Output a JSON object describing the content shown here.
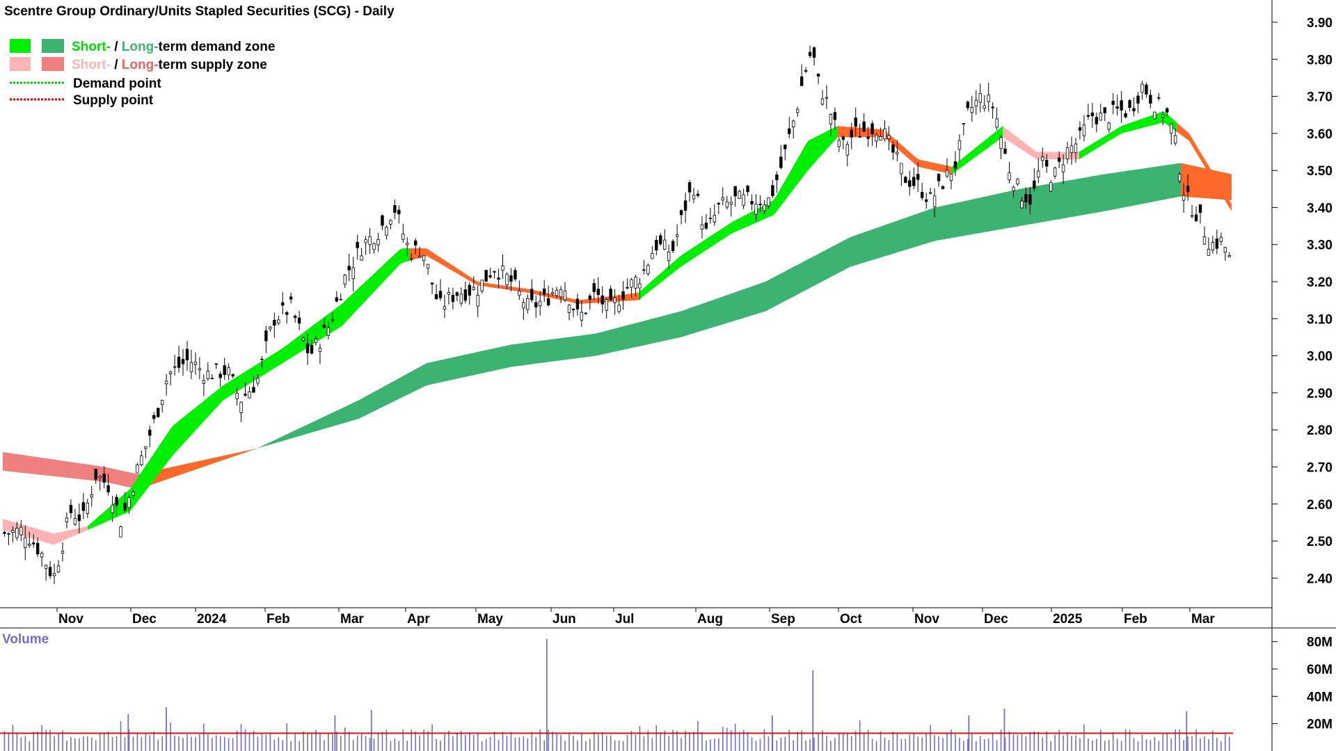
{
  "chart_data": {
    "type": "candlestick",
    "title": "Scentre Group Ordinary/Units Stapled Securities (SCG) - Daily",
    "legend": {
      "items": [
        {
          "text_parts": [
            "Short-",
            " / ",
            "Long-",
            "term demand zone"
          ]
        },
        {
          "text_parts": [
            "Short-",
            " / ",
            "Long-",
            "term supply zone"
          ]
        },
        {
          "text_parts": [
            "Demand point"
          ]
        },
        {
          "text_parts": [
            "Supply point"
          ]
        }
      ],
      "placement": "top-left"
    },
    "price_axis": {
      "ticks": [
        "3.90",
        "3.80",
        "3.70",
        "3.60",
        "3.50",
        "3.40",
        "3.30",
        "3.20",
        "3.10",
        "3.00",
        "2.90",
        "2.80",
        "2.70",
        "2.60",
        "2.50",
        "2.40"
      ],
      "range": [
        2.32,
        3.96
      ]
    },
    "x_axis": {
      "labels": [
        "Nov",
        "Dec",
        "2024",
        "Feb",
        "Mar",
        "Apr",
        "May",
        "Jun",
        "Jul",
        "Aug",
        "Sep",
        "Oct",
        "Nov",
        "Dec",
        "2025",
        "Feb",
        "Mar"
      ]
    },
    "volume": {
      "title": "Volume",
      "ticks": [
        "80M",
        "60M",
        "40M",
        "20M"
      ],
      "max_shown": 82000000
    },
    "close_series": [
      {
        "t": 0,
        "v": 2.52
      },
      {
        "t": 25,
        "v": 2.53
      },
      {
        "t": 45,
        "v": 2.47
      },
      {
        "t": 60,
        "v": 2.4
      },
      {
        "t": 80,
        "v": 2.58
      },
      {
        "t": 95,
        "v": 2.56
      },
      {
        "t": 110,
        "v": 2.68
      },
      {
        "t": 125,
        "v": 2.65
      },
      {
        "t": 140,
        "v": 2.55
      },
      {
        "t": 160,
        "v": 2.7
      },
      {
        "t": 180,
        "v": 2.83
      },
      {
        "t": 195,
        "v": 2.95
      },
      {
        "t": 220,
        "v": 2.99
      },
      {
        "t": 240,
        "v": 2.95
      },
      {
        "t": 265,
        "v": 2.96
      },
      {
        "t": 280,
        "v": 2.88
      },
      {
        "t": 300,
        "v": 2.93
      },
      {
        "t": 320,
        "v": 3.1
      },
      {
        "t": 340,
        "v": 3.13
      },
      {
        "t": 362,
        "v": 3.0
      },
      {
        "t": 385,
        "v": 3.08
      },
      {
        "t": 405,
        "v": 3.22
      },
      {
        "t": 425,
        "v": 3.3
      },
      {
        "t": 445,
        "v": 3.34
      },
      {
        "t": 462,
        "v": 3.4
      },
      {
        "t": 480,
        "v": 3.28
      },
      {
        "t": 495,
        "v": 3.29
      },
      {
        "t": 515,
        "v": 3.13
      },
      {
        "t": 535,
        "v": 3.17
      },
      {
        "t": 560,
        "v": 3.18
      },
      {
        "t": 580,
        "v": 3.24
      },
      {
        "t": 600,
        "v": 3.2
      },
      {
        "t": 620,
        "v": 3.13
      },
      {
        "t": 640,
        "v": 3.15
      },
      {
        "t": 660,
        "v": 3.2
      },
      {
        "t": 680,
        "v": 3.1
      },
      {
        "t": 700,
        "v": 3.17
      },
      {
        "t": 715,
        "v": 3.12
      },
      {
        "t": 735,
        "v": 3.18
      },
      {
        "t": 755,
        "v": 3.22
      },
      {
        "t": 770,
        "v": 3.3
      },
      {
        "t": 790,
        "v": 3.28
      },
      {
        "t": 805,
        "v": 3.4
      },
      {
        "t": 815,
        "v": 3.46
      },
      {
        "t": 830,
        "v": 3.33
      },
      {
        "t": 845,
        "v": 3.4
      },
      {
        "t": 865,
        "v": 3.42
      },
      {
        "t": 885,
        "v": 3.42
      },
      {
        "t": 905,
        "v": 3.42
      },
      {
        "t": 920,
        "v": 3.52
      },
      {
        "t": 935,
        "v": 3.65
      },
      {
        "t": 945,
        "v": 3.75
      },
      {
        "t": 955,
        "v": 3.83
      },
      {
        "t": 962,
        "v": 3.74
      },
      {
        "t": 975,
        "v": 3.67
      },
      {
        "t": 990,
        "v": 3.56
      },
      {
        "t": 1005,
        "v": 3.6
      },
      {
        "t": 1020,
        "v": 3.61
      },
      {
        "t": 1035,
        "v": 3.62
      },
      {
        "t": 1050,
        "v": 3.55
      },
      {
        "t": 1065,
        "v": 3.48
      },
      {
        "t": 1080,
        "v": 3.46
      },
      {
        "t": 1095,
        "v": 3.42
      },
      {
        "t": 1110,
        "v": 3.47
      },
      {
        "t": 1125,
        "v": 3.52
      },
      {
        "t": 1140,
        "v": 3.66
      },
      {
        "t": 1155,
        "v": 3.7
      },
      {
        "t": 1170,
        "v": 3.67
      },
      {
        "t": 1185,
        "v": 3.52
      },
      {
        "t": 1200,
        "v": 3.44
      },
      {
        "t": 1215,
        "v": 3.42
      },
      {
        "t": 1225,
        "v": 3.52
      },
      {
        "t": 1240,
        "v": 3.48
      },
      {
        "t": 1255,
        "v": 3.55
      },
      {
        "t": 1270,
        "v": 3.58
      },
      {
        "t": 1285,
        "v": 3.65
      },
      {
        "t": 1300,
        "v": 3.64
      },
      {
        "t": 1315,
        "v": 3.66
      },
      {
        "t": 1330,
        "v": 3.66
      },
      {
        "t": 1345,
        "v": 3.73
      },
      {
        "t": 1360,
        "v": 3.68
      },
      {
        "t": 1375,
        "v": 3.65
      },
      {
        "t": 1385,
        "v": 3.56
      },
      {
        "t": 1395,
        "v": 3.43
      },
      {
        "t": 1410,
        "v": 3.38
      },
      {
        "t": 1425,
        "v": 3.3
      },
      {
        "t": 1440,
        "v": 3.31
      },
      {
        "t": 1452,
        "v": 3.23
      }
    ],
    "long_term_zone": {
      "style": "band",
      "upper": [
        {
          "t": 0,
          "v": 2.74
        },
        {
          "t": 120,
          "v": 2.7
        },
        {
          "t": 160,
          "v": 2.68
        },
        {
          "t": 300,
          "v": 2.75
        },
        {
          "t": 420,
          "v": 2.88
        },
        {
          "t": 500,
          "v": 2.98
        },
        {
          "t": 600,
          "v": 3.03
        },
        {
          "t": 700,
          "v": 3.06
        },
        {
          "t": 800,
          "v": 3.12
        },
        {
          "t": 900,
          "v": 3.2
        },
        {
          "t": 1000,
          "v": 3.32
        },
        {
          "t": 1100,
          "v": 3.4
        },
        {
          "t": 1200,
          "v": 3.45
        },
        {
          "t": 1300,
          "v": 3.49
        },
        {
          "t": 1390,
          "v": 3.52
        },
        {
          "t": 1450,
          "v": 3.49
        }
      ],
      "lower": [
        {
          "t": 0,
          "v": 2.69
        },
        {
          "t": 120,
          "v": 2.66
        },
        {
          "t": 160,
          "v": 2.64
        },
        {
          "t": 300,
          "v": 2.75
        },
        {
          "t": 420,
          "v": 2.83
        },
        {
          "t": 500,
          "v": 2.92
        },
        {
          "t": 600,
          "v": 2.97
        },
        {
          "t": 700,
          "v": 3.0
        },
        {
          "t": 800,
          "v": 3.05
        },
        {
          "t": 900,
          "v": 3.12
        },
        {
          "t": 1000,
          "v": 3.24
        },
        {
          "t": 1100,
          "v": 3.31
        },
        {
          "t": 1200,
          "v": 3.35
        },
        {
          "t": 1300,
          "v": 3.39
        },
        {
          "t": 1390,
          "v": 3.43
        },
        {
          "t": 1450,
          "v": 3.42
        }
      ],
      "supply_segments": [
        [
          0,
          160
        ],
        [
          160,
          300
        ],
        [
          1390,
          1450
        ]
      ]
    },
    "short_term_zone": {
      "upper": [
        {
          "t": 0,
          "v": 2.56
        },
        {
          "t": 60,
          "v": 2.52
        },
        {
          "t": 100,
          "v": 2.54
        },
        {
          "t": 150,
          "v": 2.64
        },
        {
          "t": 200,
          "v": 2.81
        },
        {
          "t": 260,
          "v": 2.92
        },
        {
          "t": 330,
          "v": 3.02
        },
        {
          "t": 400,
          "v": 3.14
        },
        {
          "t": 470,
          "v": 3.29
        },
        {
          "t": 500,
          "v": 3.29
        },
        {
          "t": 560,
          "v": 3.2
        },
        {
          "t": 620,
          "v": 3.18
        },
        {
          "t": 680,
          "v": 3.15
        },
        {
          "t": 750,
          "v": 3.17
        },
        {
          "t": 800,
          "v": 3.27
        },
        {
          "t": 860,
          "v": 3.36
        },
        {
          "t": 910,
          "v": 3.42
        },
        {
          "t": 950,
          "v": 3.58
        },
        {
          "t": 985,
          "v": 3.62
        },
        {
          "t": 1040,
          "v": 3.61
        },
        {
          "t": 1080,
          "v": 3.53
        },
        {
          "t": 1120,
          "v": 3.51
        },
        {
          "t": 1180,
          "v": 3.62
        },
        {
          "t": 1220,
          "v": 3.55
        },
        {
          "t": 1270,
          "v": 3.55
        },
        {
          "t": 1320,
          "v": 3.62
        },
        {
          "t": 1370,
          "v": 3.66
        },
        {
          "t": 1400,
          "v": 3.6
        },
        {
          "t": 1450,
          "v": 3.41
        }
      ],
      "lower": [
        {
          "t": 0,
          "v": 2.53
        },
        {
          "t": 60,
          "v": 2.49
        },
        {
          "t": 100,
          "v": 2.53
        },
        {
          "t": 150,
          "v": 2.58
        },
        {
          "t": 200,
          "v": 2.73
        },
        {
          "t": 260,
          "v": 2.88
        },
        {
          "t": 330,
          "v": 2.98
        },
        {
          "t": 400,
          "v": 3.08
        },
        {
          "t": 470,
          "v": 3.25
        },
        {
          "t": 500,
          "v": 3.27
        },
        {
          "t": 560,
          "v": 3.19
        },
        {
          "t": 620,
          "v": 3.17
        },
        {
          "t": 680,
          "v": 3.14
        },
        {
          "t": 750,
          "v": 3.15
        },
        {
          "t": 800,
          "v": 3.24
        },
        {
          "t": 860,
          "v": 3.33
        },
        {
          "t": 910,
          "v": 3.38
        },
        {
          "t": 950,
          "v": 3.5
        },
        {
          "t": 985,
          "v": 3.59
        },
        {
          "t": 1040,
          "v": 3.59
        },
        {
          "t": 1080,
          "v": 3.51
        },
        {
          "t": 1120,
          "v": 3.49
        },
        {
          "t": 1180,
          "v": 3.59
        },
        {
          "t": 1220,
          "v": 3.53
        },
        {
          "t": 1270,
          "v": 3.53
        },
        {
          "t": 1320,
          "v": 3.6
        },
        {
          "t": 1370,
          "v": 3.63
        },
        {
          "t": 1400,
          "v": 3.58
        },
        {
          "t": 1450,
          "v": 3.39
        }
      ],
      "demand_segments": [
        [
          100,
          480
        ],
        [
          750,
          985
        ],
        [
          1120,
          1180
        ],
        [
          1270,
          1385
        ]
      ],
      "supply_segments": [
        [
          0,
          100
        ],
        [
          480,
          750
        ],
        [
          985,
          1120
        ],
        [
          1180,
          1270
        ],
        [
          1385,
          1450
        ]
      ]
    },
    "volume_spikes": [
      {
        "t": 148,
        "v": 27000000
      },
      {
        "t": 193,
        "v": 32000000
      },
      {
        "t": 392,
        "v": 26000000
      },
      {
        "t": 435,
        "v": 30000000
      },
      {
        "t": 642,
        "v": 82000000
      },
      {
        "t": 908,
        "v": 26000000
      },
      {
        "t": 956,
        "v": 59000000
      },
      {
        "t": 1140,
        "v": 26000000
      },
      {
        "t": 1182,
        "v": 31000000
      },
      {
        "t": 1397,
        "v": 29000000
      }
    ],
    "volume_avg": 13000000,
    "grid": false
  },
  "colors": {
    "demand_short": "#00ee00",
    "demand_long": "#3cb371",
    "supply_short": "#ffb3b3",
    "supply_long": "#f08080",
    "supply_short_active": "#ff6a2a",
    "demand_point": "#00cc00",
    "supply_point": "#e00000",
    "volume_bar": "#6f6fc8",
    "volume_avg": "#dd0000",
    "candle": "#000000"
  }
}
